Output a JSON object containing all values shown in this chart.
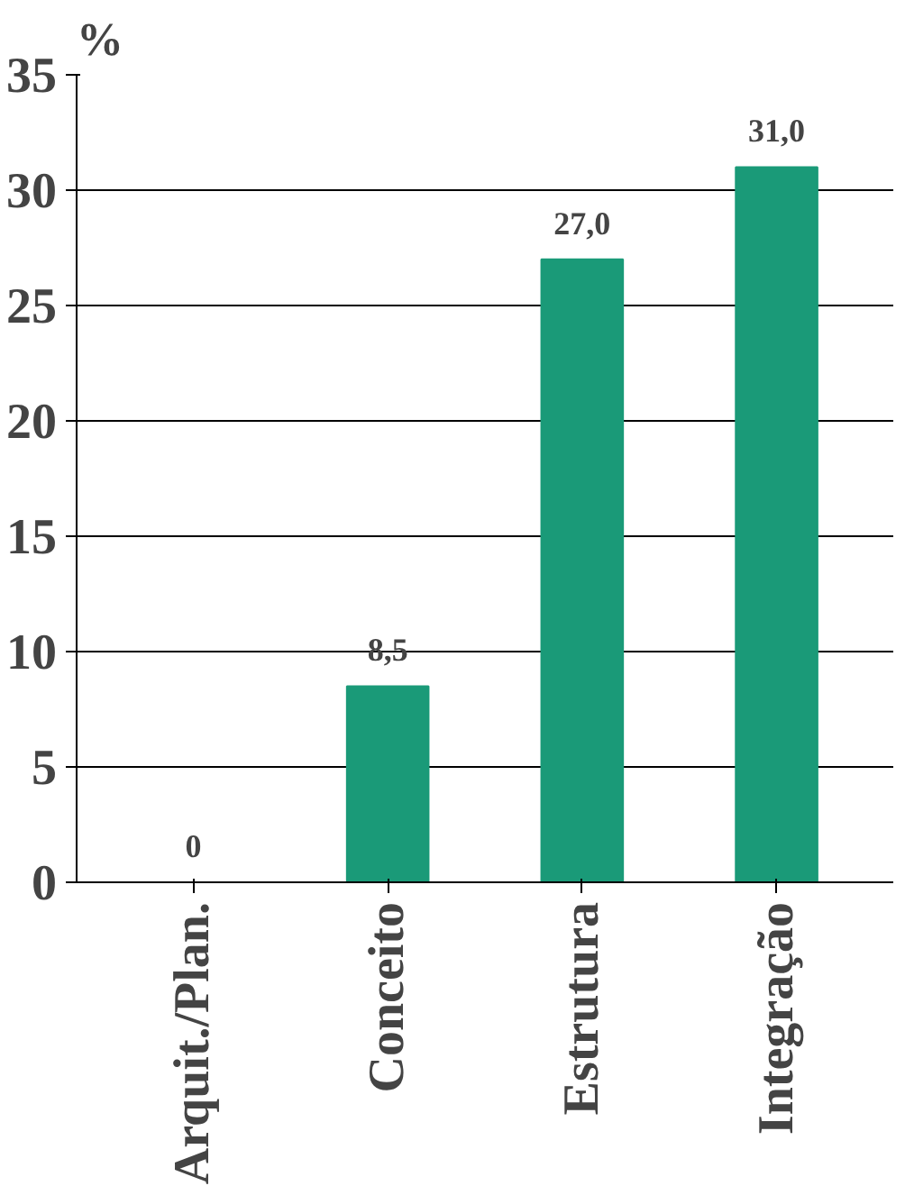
{
  "chart_data": {
    "type": "bar",
    "ylabel": "%",
    "categories": [
      "Arquit./Plan.",
      "Conceito",
      "Estrutura",
      "Integração"
    ],
    "values": [
      0,
      8.5,
      27.0,
      31.0
    ],
    "value_labels": [
      "0",
      "8,5",
      "27,0",
      "31,0"
    ],
    "color": "#1a9a78",
    "ylim": [
      0,
      35
    ],
    "yticks": [
      0,
      5,
      10,
      15,
      20,
      25,
      30,
      35
    ],
    "grid": "y"
  }
}
